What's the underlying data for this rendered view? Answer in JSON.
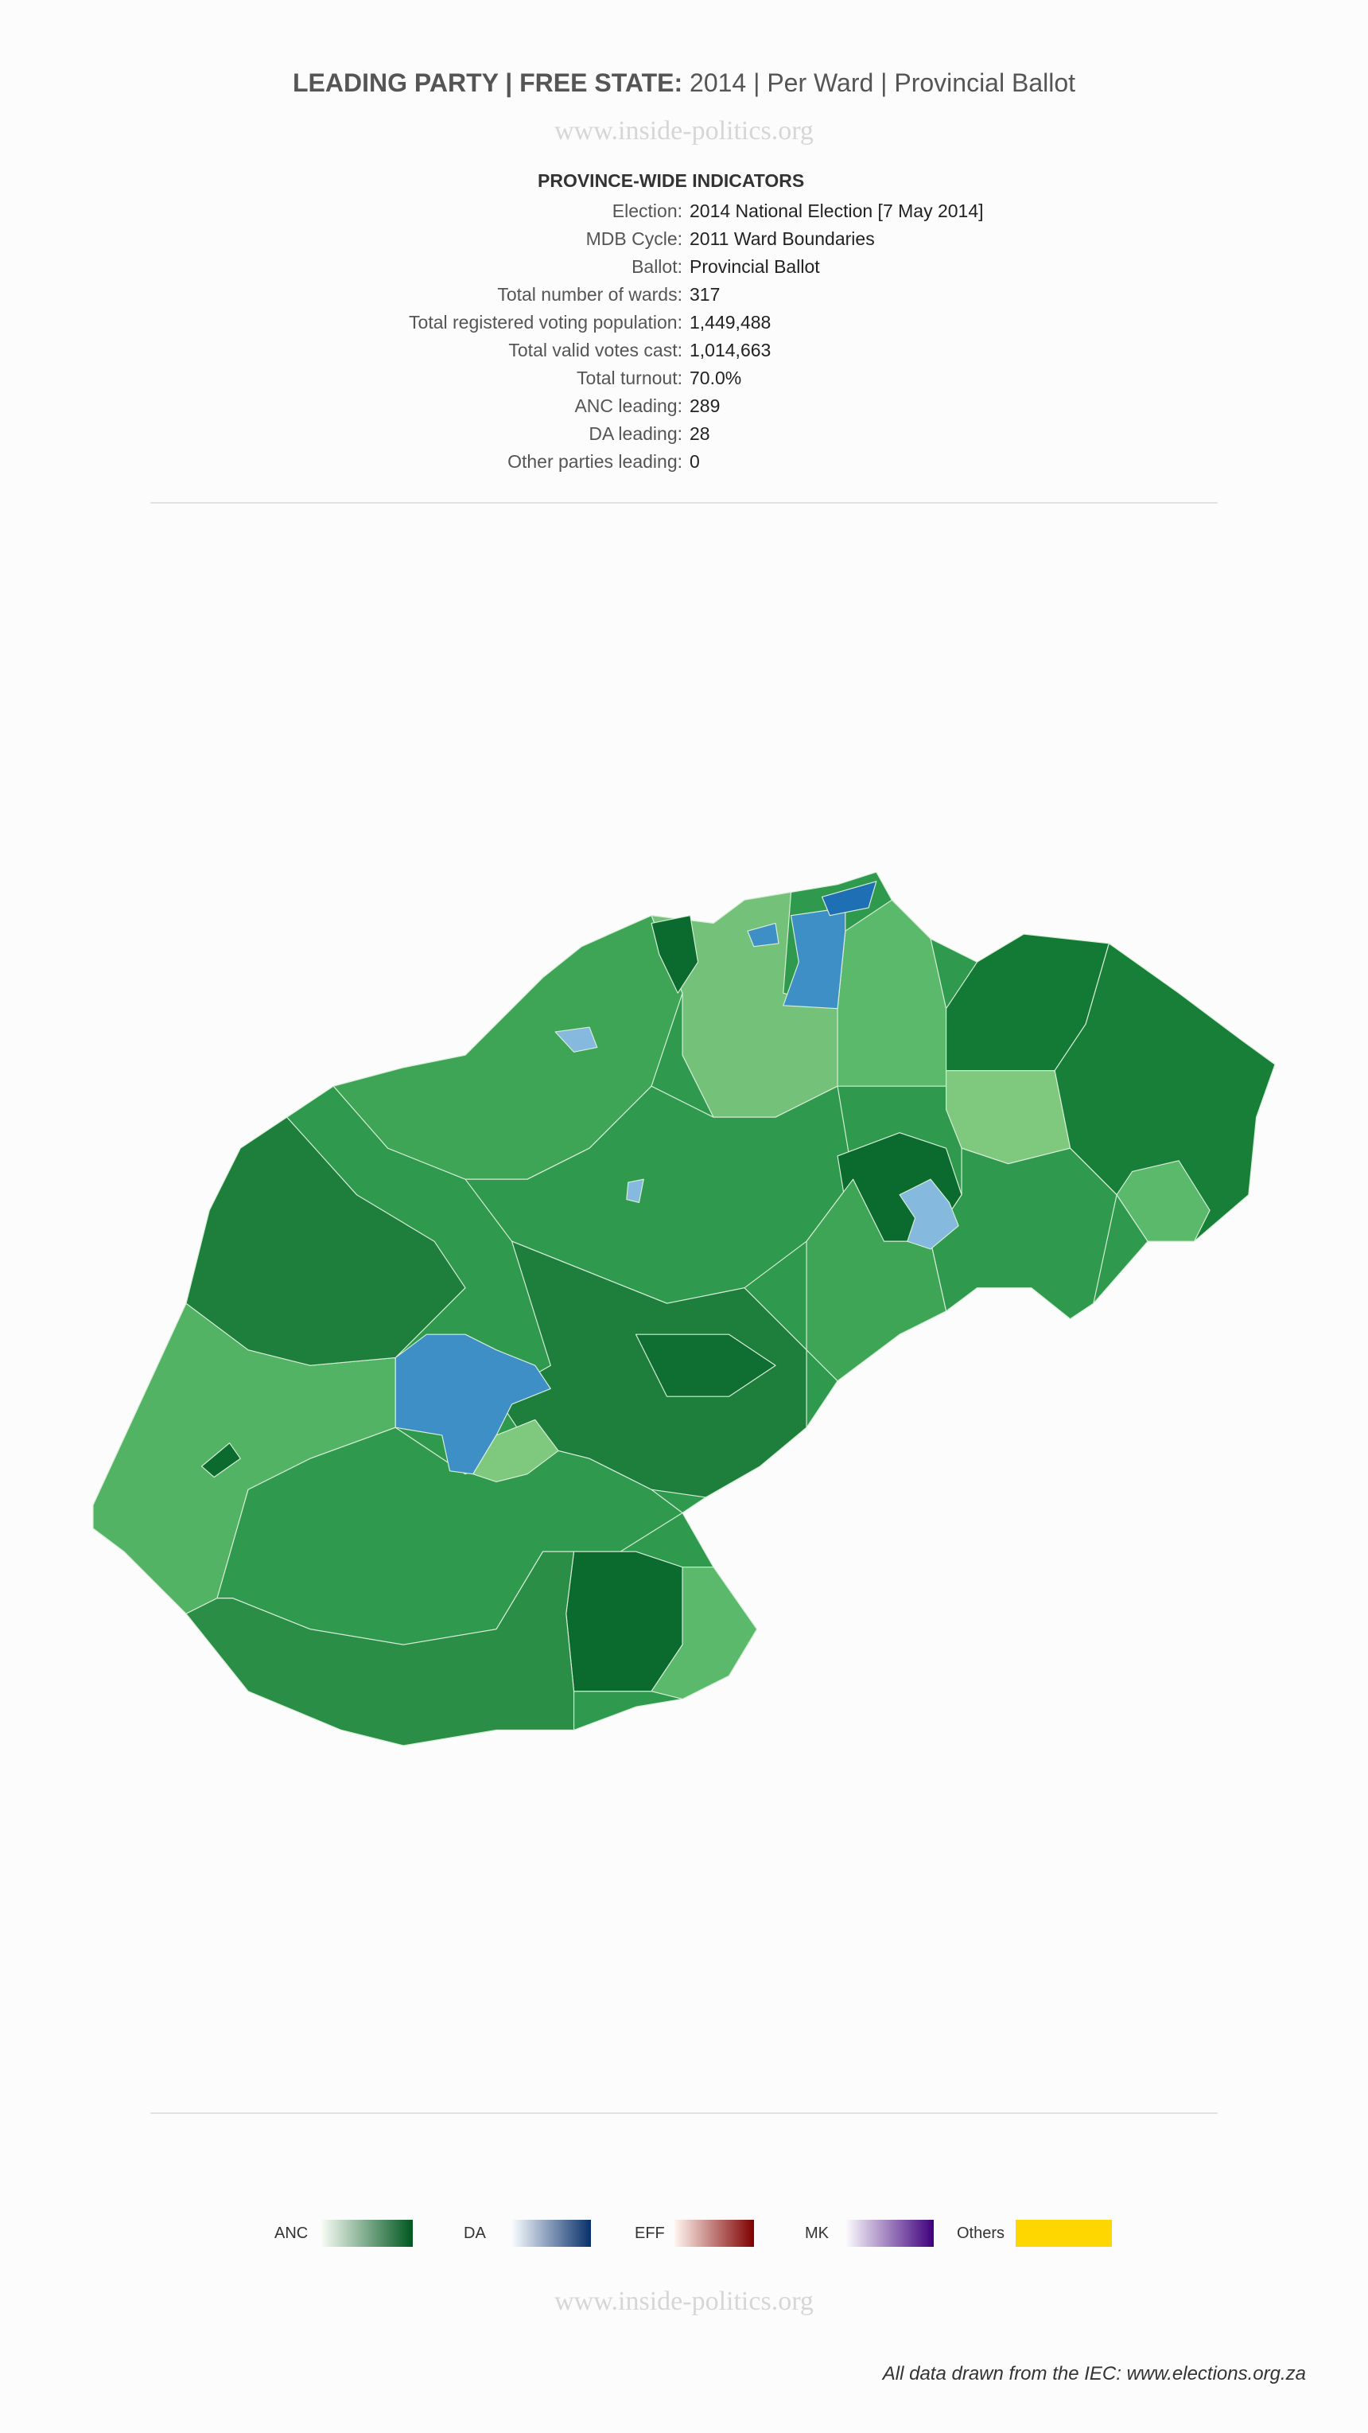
{
  "header": {
    "title_bold": "LEADING PARTY | FREE STATE:",
    "title_rest": " 2014 | Per Ward | Provincial Ballot",
    "watermark": "www.inside-politics.org"
  },
  "indicators": {
    "heading": "PROVINCE-WIDE INDICATORS",
    "rows": [
      {
        "label": "Election:",
        "value": "2014 National Election [7 May 2014]"
      },
      {
        "label": "MDB Cycle:",
        "value": "2011 Ward Boundaries"
      },
      {
        "label": "Ballot:",
        "value": "Provincial Ballot"
      },
      {
        "label": "Total number of wards:",
        "value": "317"
      },
      {
        "label": "Total registered voting population:",
        "value": "1,449,488"
      },
      {
        "label": "Total valid votes cast:",
        "value": "1,014,663"
      },
      {
        "label": "Total turnout:",
        "value": "70.0%"
      },
      {
        "label": "ANC leading:",
        "value": "289"
      },
      {
        "label": "DA leading:",
        "value": "28"
      },
      {
        "label": "Other parties leading:",
        "value": "0"
      }
    ]
  },
  "chart_data": {
    "type": "choropleth",
    "region": "Free State",
    "unit": "ward",
    "leading_counts": {
      "ANC": 289,
      "DA": 28,
      "Others": 0
    },
    "legend": [
      {
        "name": "ANC",
        "from": "#f7fcf5",
        "to": "#00571f"
      },
      {
        "name": "DA",
        "from": "#f7fbff",
        "to": "#08306b"
      },
      {
        "name": "EFF",
        "from": "#fff5f0",
        "to": "#7f0000"
      },
      {
        "name": "MK",
        "from": "#fcfbfd",
        "to": "#3f007d"
      },
      {
        "name": "Others",
        "from": "#ffd700",
        "to": "#ffd700"
      }
    ],
    "legend_placement": "bottom"
  },
  "footer": {
    "watermark": "www.inside-politics.org",
    "source": "All data drawn from the IEC: www.elections.org.za"
  }
}
